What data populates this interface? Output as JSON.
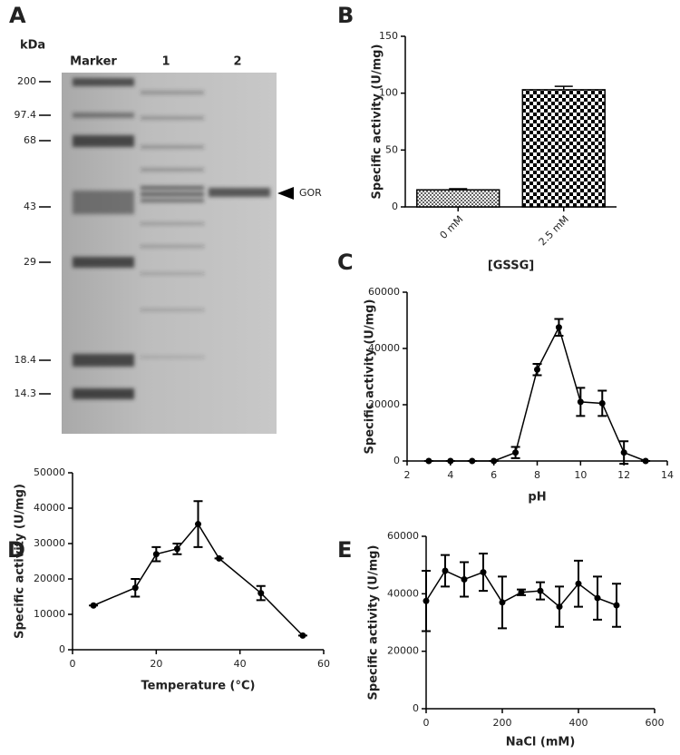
{
  "panels": [
    "A",
    "B",
    "C",
    "D",
    "E"
  ],
  "gel": {
    "unit": "kDa",
    "lanes": [
      "Marker",
      "1",
      "2"
    ],
    "markers": [
      200,
      97.4,
      68,
      43,
      29,
      18.4,
      14.3
    ],
    "band_label": "GOR"
  },
  "chart_data": [
    {
      "type": "bar",
      "categories": [
        "0 mM",
        "2.5 mM"
      ],
      "values": [
        15,
        103
      ],
      "errors": [
        1,
        3
      ],
      "ylim": [
        0,
        150
      ],
      "yticks": [
        0,
        50,
        100,
        150
      ],
      "ylabel": "Specific activity  (U/mg)",
      "xlabel": "[GSSG]"
    },
    {
      "type": "line",
      "x": [
        3,
        4,
        5,
        6,
        7,
        8,
        9,
        10,
        11,
        12,
        13
      ],
      "values": [
        0,
        0,
        0,
        0,
        3000,
        32500,
        47500,
        21000,
        20500,
        3000,
        0
      ],
      "errors": [
        0,
        0,
        0,
        0,
        2000,
        2000,
        3000,
        5000,
        4500,
        4000,
        0
      ],
      "color": "#000000",
      "xlim": [
        2,
        14
      ],
      "xticks": [
        2,
        4,
        6,
        8,
        10,
        12,
        14
      ],
      "ylim": [
        0,
        60000
      ],
      "yticks": [
        0,
        20000,
        40000,
        60000
      ],
      "ylabel": "Specific activity (U/mg)",
      "xlabel": "pH"
    },
    {
      "type": "line",
      "x": [
        5,
        15,
        20,
        25,
        30,
        35,
        45,
        55
      ],
      "values": [
        12500,
        17500,
        27000,
        28500,
        35500,
        25800,
        16000,
        4000
      ],
      "errors": [
        0,
        2500,
        2000,
        1500,
        6500,
        0,
        2000,
        0
      ],
      "color": "#000000",
      "xlim": [
        0,
        60
      ],
      "xticks": [
        0,
        20,
        40,
        60
      ],
      "ylim": [
        0,
        50000
      ],
      "yticks": [
        0,
        10000,
        20000,
        30000,
        40000,
        50000
      ],
      "ylabel": "Specific activity (U/mg)",
      "xlabel": "Temperature (°C)"
    },
    {
      "type": "line",
      "x": [
        0,
        50,
        100,
        150,
        200,
        250,
        300,
        350,
        400,
        450,
        500
      ],
      "values": [
        37500,
        48000,
        45000,
        47500,
        37000,
        40500,
        41000,
        35500,
        43500,
        38500,
        36000
      ],
      "errors": [
        10500,
        5500,
        6000,
        6500,
        9000,
        1000,
        3000,
        7000,
        8000,
        7500,
        7500
      ],
      "color": "#000000",
      "xlim": [
        0,
        600
      ],
      "xticks": [
        0,
        200,
        400,
        600
      ],
      "ylim": [
        0,
        60000
      ],
      "yticks": [
        0,
        20000,
        40000,
        60000
      ],
      "ylabel": "Specific activity (U/mg)",
      "xlabel": "NaCl (mM)"
    }
  ]
}
